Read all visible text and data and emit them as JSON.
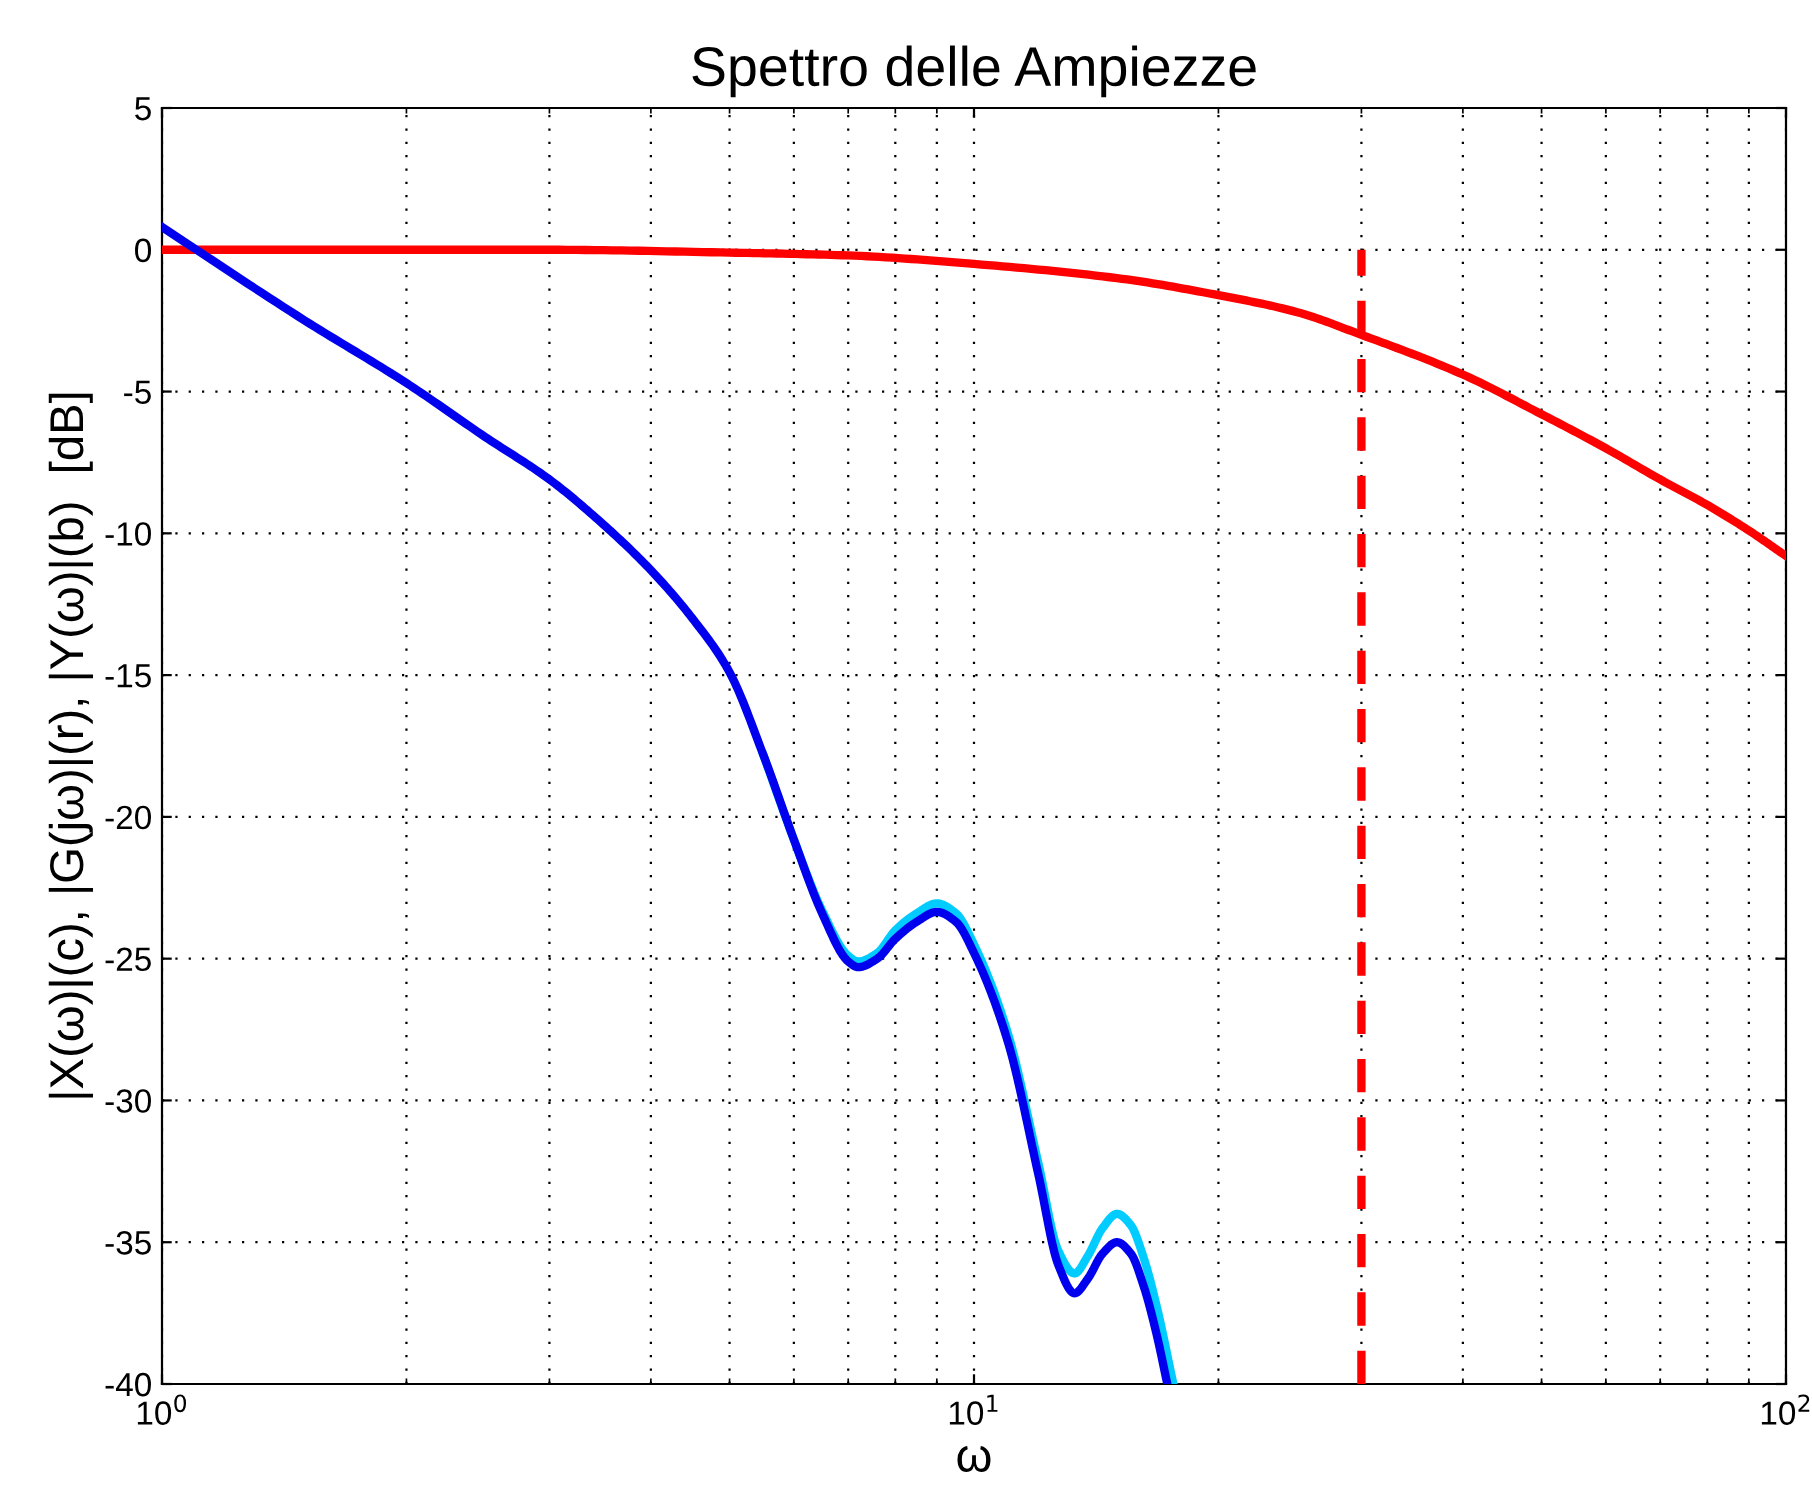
{
  "chart_data": {
    "type": "line",
    "title": "Spettro delle Ampiezze",
    "xlabel": "ω",
    "ylabel": "|X(ω)|(c), |G(jω)|(r), |Y(ω)|(b)  [dB]",
    "log": "x",
    "grid": true,
    "legend": false,
    "marker": "none",
    "xlim": [
      1,
      100
    ],
    "xticks": [
      {
        "value": 1,
        "label": "10$^{0}$"
      },
      {
        "value": 10,
        "label": "10$^{1}$"
      },
      {
        "value": 100,
        "label": "10$^{2}$"
      }
    ],
    "ylim": [
      -40,
      5
    ],
    "yticks": [
      -40,
      -35,
      -30,
      -25,
      -20,
      -15,
      -10,
      -5,
      0,
      5
    ],
    "series": [
      {
        "color": "#ff0000",
        "line_style": "solid",
        "x": [
          1,
          2,
          3,
          5,
          7,
          10,
          15,
          20,
          25,
          30,
          40,
          50,
          60,
          70,
          80,
          90,
          100
        ],
        "values": [
          0,
          0,
          0,
          -0.1,
          -0.2,
          -0.5,
          -1.0,
          -1.6,
          -2.2,
          -3.0,
          -4.4,
          -5.8,
          -7.0,
          -8.1,
          -9.0,
          -9.9,
          -10.8
        ]
      },
      {
        "color": "#00ccff",
        "line_style": "solid",
        "x": [
          5.5,
          6,
          6.5,
          7,
          7.2,
          7.6,
          8,
          8.5,
          9,
          9.5,
          10,
          11,
          12,
          12.7,
          13.3,
          13.8,
          14.4,
          15,
          15.6,
          16.2,
          16.8,
          17.6
        ],
        "values": [
          -17.8,
          -20.8,
          -23.3,
          -24.9,
          -25.1,
          -24.8,
          -24.0,
          -23.4,
          -23.05,
          -23.4,
          -24.5,
          -27.6,
          -32.2,
          -35.3,
          -36.1,
          -35.5,
          -34.5,
          -34.0,
          -34.4,
          -35.6,
          -37.3,
          -40
        ]
      },
      {
        "color": "#0000ee",
        "line_style": "solid",
        "x": [
          1,
          1.5,
          2,
          2.5,
          3,
          3.5,
          4,
          4.5,
          5,
          5.5,
          6,
          6.5,
          7,
          7.2,
          7.6,
          8,
          8.5,
          9,
          9.5,
          10,
          11,
          12,
          12.7,
          13.3,
          13.8,
          14.4,
          15,
          15.6,
          16.2,
          16.8,
          17.3
        ],
        "values": [
          0.8,
          -2.5,
          -4.7,
          -6.6,
          -8.1,
          -9.7,
          -11.3,
          -13,
          -14.9,
          -17.8,
          -20.8,
          -23.4,
          -25.1,
          -25.3,
          -25.0,
          -24.3,
          -23.7,
          -23.35,
          -23.7,
          -24.8,
          -27.9,
          -32.6,
          -35.8,
          -36.8,
          -36.3,
          -35.4,
          -35.0,
          -35.4,
          -36.6,
          -38.3,
          -40
        ]
      },
      {
        "color": "#ff0000",
        "line_style": "dashed",
        "x": [
          30,
          30
        ],
        "values": [
          -40,
          0
        ]
      }
    ]
  }
}
